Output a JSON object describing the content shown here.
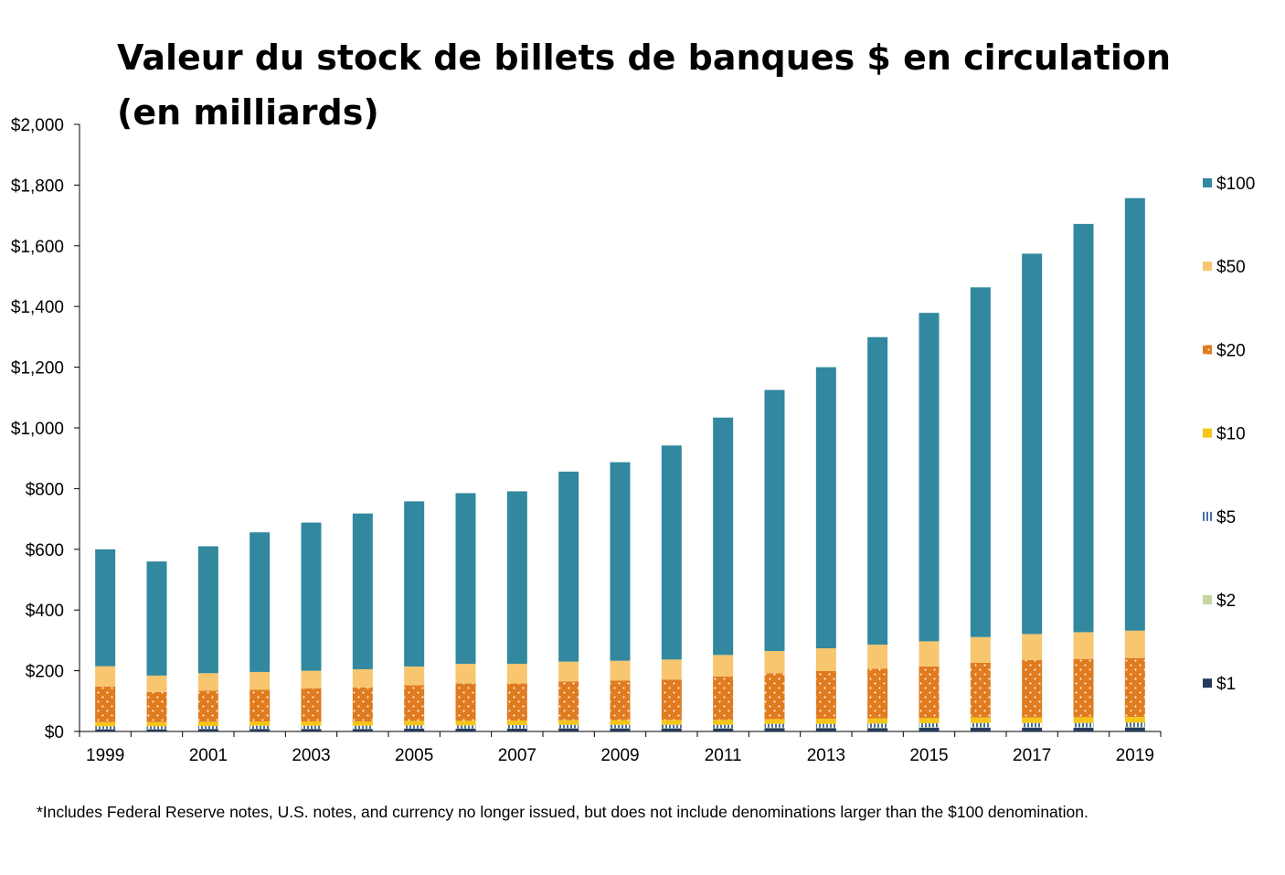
{
  "title_lines": [
    "Valeur du stock de billets de banques $ en circulation",
    "(en milliards)"
  ],
  "footnote": "*Includes Federal Reserve notes, U.S. notes, and currency no longer issued, but does not include denominations larger than the $100 denomination.",
  "colors": {
    "d1": "#243b5e",
    "d2": "#c5d6a0",
    "d5": "#4a6f9c",
    "d10": "#f5c518",
    "d20": "#e07b1f",
    "d50": "#f7c66e",
    "d100": "#31889f",
    "axis": "#000000"
  },
  "chart_data": {
    "type": "bar",
    "stacked": true,
    "title": "Valeur du stock de billets de banques $ en circulation (en milliards)",
    "x": [
      1999,
      2000,
      2001,
      2002,
      2003,
      2004,
      2005,
      2006,
      2007,
      2008,
      2009,
      2010,
      2011,
      2012,
      2013,
      2014,
      2015,
      2016,
      2017,
      2018,
      2019
    ],
    "x_tick_labels": [
      "1999",
      "2001",
      "2003",
      "2005",
      "2007",
      "2009",
      "2011",
      "2013",
      "2015",
      "2017",
      "2019"
    ],
    "y_tick_labels": [
      "$0",
      "$200",
      "$400",
      "$600",
      "$800",
      "$1,000",
      "$1,200",
      "$1,400",
      "$1,600",
      "$1,800",
      "$2,000"
    ],
    "ylim": [
      0,
      2000
    ],
    "y_ticks": [
      0,
      200,
      400,
      600,
      800,
      1000,
      1200,
      1400,
      1600,
      1800,
      2000
    ],
    "legend_position": "right",
    "series": [
      {
        "name": "$1",
        "key": "d1",
        "pattern": "solid",
        "values": [
          7,
          7,
          8,
          8,
          8,
          8,
          9,
          9,
          9,
          10,
          10,
          10,
          10,
          11,
          11,
          11,
          12,
          12,
          12,
          12,
          13
        ]
      },
      {
        "name": "$2",
        "key": "d2",
        "pattern": "solid",
        "values": [
          1,
          1,
          1,
          1,
          1,
          1,
          1,
          1,
          1,
          1,
          1,
          1,
          1,
          2,
          2,
          2,
          2,
          2,
          2,
          2,
          2
        ]
      },
      {
        "name": "$5",
        "key": "d5",
        "pattern": "stripes",
        "values": [
          9,
          9,
          9,
          10,
          10,
          10,
          10,
          10,
          11,
          11,
          11,
          11,
          11,
          12,
          12,
          13,
          13,
          14,
          14,
          14,
          14
        ]
      },
      {
        "name": "$10",
        "key": "d10",
        "pattern": "solid",
        "values": [
          14,
          14,
          14,
          14,
          14,
          14,
          15,
          15,
          15,
          15,
          15,
          16,
          16,
          16,
          17,
          17,
          17,
          18,
          18,
          19,
          19
        ]
      },
      {
        "name": "$20",
        "key": "d20",
        "pattern": "dots",
        "values": [
          117,
          99,
          102,
          104,
          109,
          112,
          117,
          123,
          122,
          128,
          131,
          133,
          143,
          151,
          157,
          164,
          170,
          180,
          189,
          192,
          194
        ]
      },
      {
        "name": "$50",
        "key": "d50",
        "pattern": "solid",
        "values": [
          67,
          54,
          58,
          59,
          58,
          60,
          62,
          65,
          65,
          65,
          65,
          66,
          71,
          73,
          75,
          79,
          83,
          85,
          86,
          88,
          90
        ]
      },
      {
        "name": "$100",
        "key": "d100",
        "pattern": "solid",
        "values": [
          385,
          376,
          418,
          460,
          488,
          513,
          544,
          562,
          568,
          626,
          654,
          705,
          782,
          860,
          926,
          1013,
          1082,
          1152,
          1253,
          1345,
          1425
        ]
      }
    ],
    "footnote": "*Includes Federal Reserve notes, U.S. notes, and currency no longer issued, but does not include denominations larger than the $100 denomination."
  }
}
